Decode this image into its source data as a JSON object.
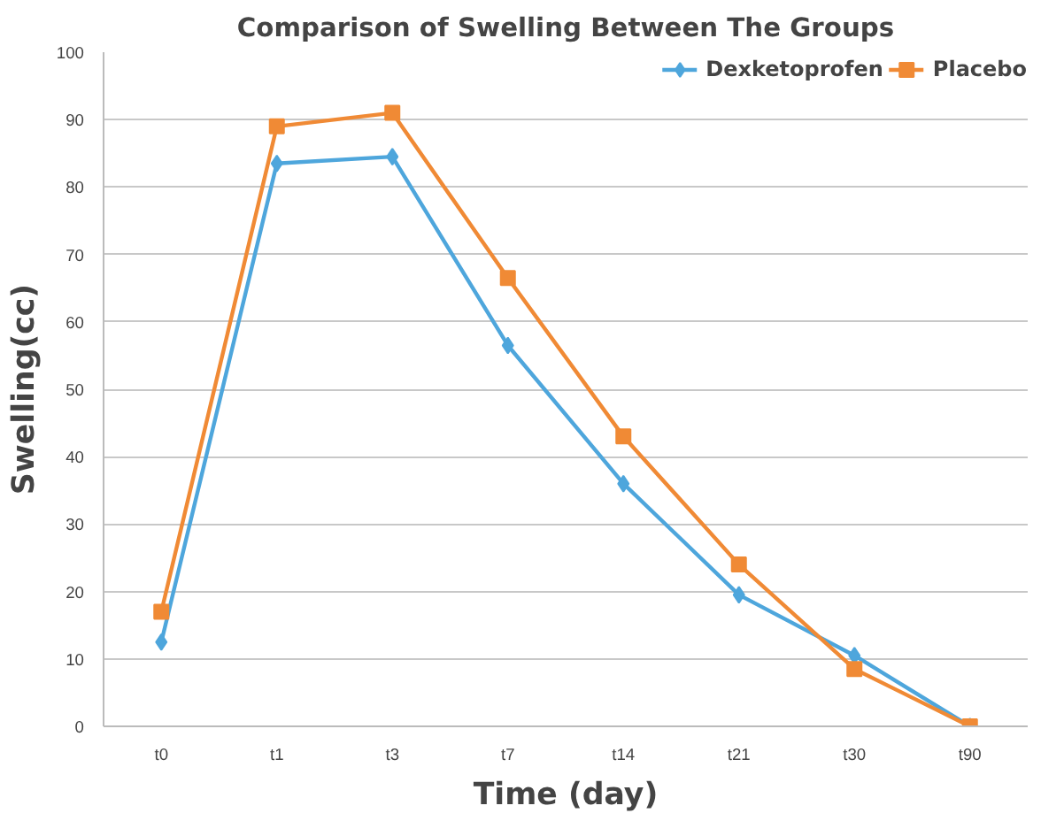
{
  "chart_data": {
    "type": "line",
    "title": "Comparison of Swelling Between The Groups",
    "xlabel": "Time (day)",
    "ylabel": "Swelling(cc)",
    "categories": [
      "t0",
      "t1",
      "t3",
      "t7",
      "t14",
      "t21",
      "t30",
      "t90"
    ],
    "series": [
      {
        "name": "Dexketoprofen",
        "color": "#4ea6dc",
        "marker": "diamond",
        "values": [
          12.5,
          83.5,
          84.5,
          56.5,
          36,
          19.5,
          10.5,
          0
        ]
      },
      {
        "name": "Placebo",
        "color": "#f08a35",
        "marker": "square",
        "values": [
          17,
          89,
          91,
          66.5,
          43,
          24,
          8.5,
          0
        ]
      }
    ],
    "ylim": [
      0,
      100
    ],
    "yticks": [
      0,
      10,
      20,
      30,
      40,
      50,
      60,
      70,
      80,
      90,
      100
    ],
    "grid": "y",
    "legend": "top right",
    "line_style": "solid"
  }
}
